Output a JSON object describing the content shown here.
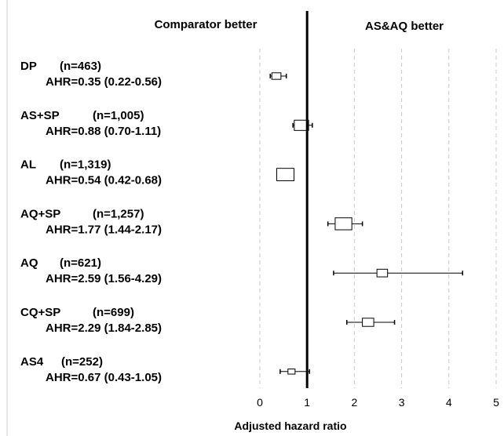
{
  "chart_data": {
    "type": "forest",
    "header_left": "Comparator better",
    "header_right": "AS&AQ better",
    "xlabel": "Adjusted hazard ratio",
    "xlim": [
      0,
      5
    ],
    "xticks": [
      "0",
      "1",
      "2",
      "3",
      "4",
      "5"
    ],
    "reference_line": 1,
    "grid": "vertical dashed",
    "rows": [
      {
        "name": "DP",
        "n": "(n=463)",
        "ahr": 0.35,
        "lo": 0.22,
        "hi": 0.56,
        "text": "AHR=0.35 (0.22-0.56)",
        "weight": 463
      },
      {
        "name": "AS+SP",
        "n": "(n=1,005)",
        "ahr": 0.88,
        "lo": 0.7,
        "hi": 1.11,
        "text": "AHR=0.88 (0.70-1.11)",
        "weight": 1005
      },
      {
        "name": "AL",
        "n": "(n=1,319)",
        "ahr": 0.54,
        "lo": 0.42,
        "hi": 0.68,
        "text": "AHR=0.54 (0.42-0.68)",
        "weight": 1319
      },
      {
        "name": "AQ+SP",
        "n": "(n=1,257)",
        "ahr": 1.77,
        "lo": 1.44,
        "hi": 2.17,
        "text": "AHR=1.77 (1.44-2.17)",
        "weight": 1257
      },
      {
        "name": "AQ",
        "n": "(n=621)",
        "ahr": 2.59,
        "lo": 1.56,
        "hi": 4.29,
        "text": "AHR=2.59 (1.56-4.29)",
        "weight": 621
      },
      {
        "name": "CQ+SP",
        "n": "(n=699)",
        "ahr": 2.29,
        "lo": 1.84,
        "hi": 2.85,
        "text": "AHR=2.29 (1.84-2.85)",
        "weight": 699
      },
      {
        "name": "AS4",
        "n": "(n=252)",
        "ahr": 0.67,
        "lo": 0.43,
        "hi": 1.05,
        "text": "AHR=0.67 (0.43-1.05)",
        "weight": 252
      }
    ]
  }
}
